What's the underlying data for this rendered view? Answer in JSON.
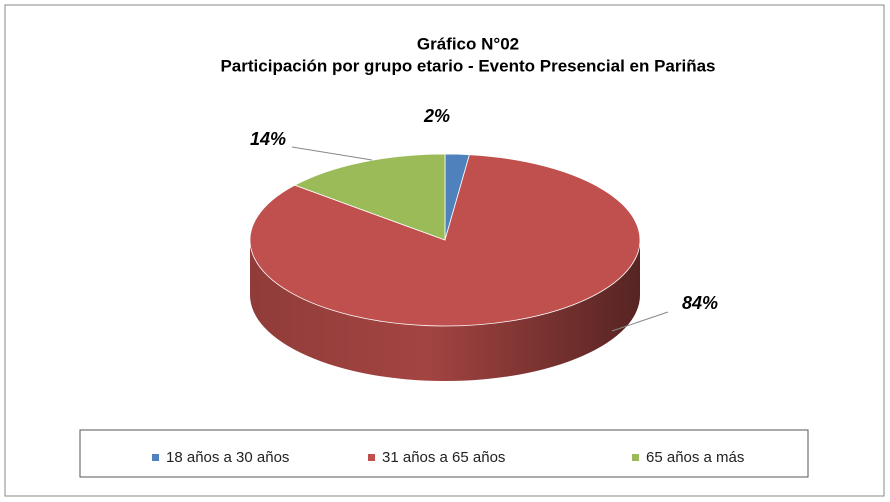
{
  "chart_data": {
    "type": "pie",
    "title": "Gráfico N°02",
    "subtitle": "Participación por grupo etario - Evento Presencial en Pariñas",
    "categories": [
      "18 años a 30 años",
      "31 años a 65 años",
      "65 años a más"
    ],
    "values": [
      2,
      84,
      14
    ],
    "value_labels": [
      "2%",
      "84%",
      "14%"
    ],
    "colors": [
      "#4f81bd",
      "#c0504d",
      "#9bbb59"
    ],
    "legend": "bottom"
  }
}
